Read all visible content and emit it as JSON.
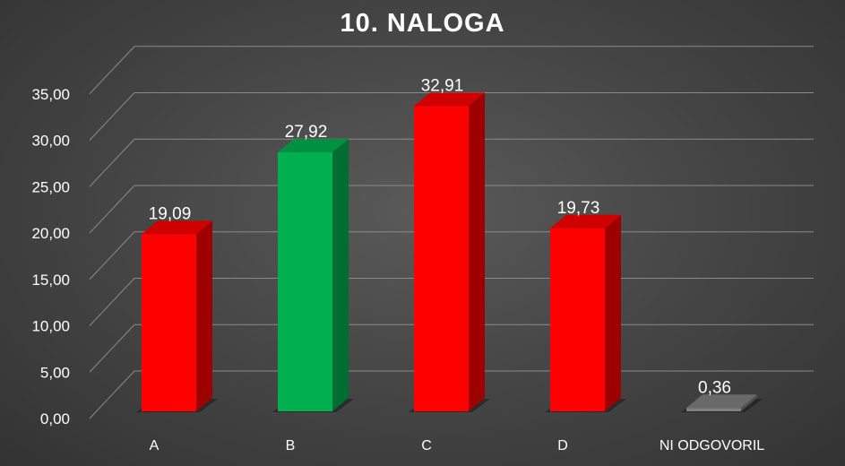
{
  "chart_data": {
    "type": "bar",
    "title": "10. NALOGA",
    "categories": [
      "A",
      "B",
      "C",
      "D",
      "NI ODGOVORIL"
    ],
    "values": [
      19.09,
      27.92,
      32.91,
      19.73,
      0.36
    ],
    "value_labels": [
      "19,09",
      "27,92",
      "32,91",
      "19,73",
      "0,36"
    ],
    "colors": [
      "#ff0000",
      "#00b050",
      "#ff0000",
      "#ff0000",
      "#808080"
    ],
    "ylim": [
      0,
      35
    ],
    "yticks": [
      "0,00",
      "5,00",
      "10,00",
      "15,00",
      "20,00",
      "25,00",
      "30,00",
      "35,00"
    ],
    "ytick_values": [
      0,
      5,
      10,
      15,
      20,
      25,
      30,
      35
    ],
    "grid": true,
    "style": "3d-column",
    "xlabel": "",
    "ylabel": ""
  }
}
